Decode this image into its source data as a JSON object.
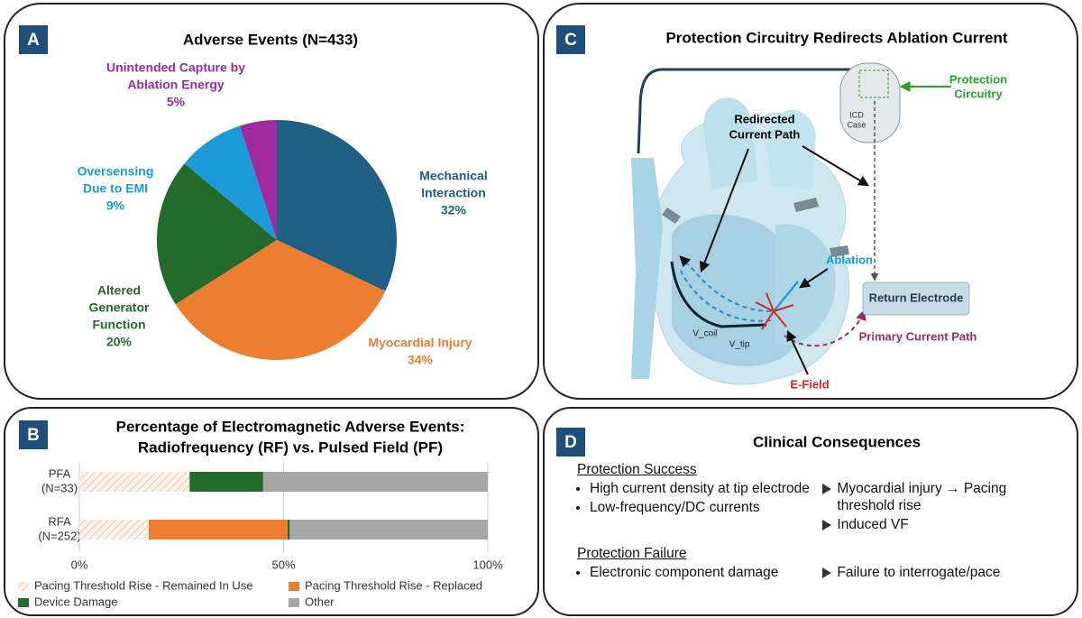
{
  "chart_data": [
    {
      "type": "pie",
      "panel": "A",
      "title": "Adverse Events (N=433)",
      "categories": [
        [
          "Mechanical",
          "Interaction"
        ],
        [
          "Myocardial Injury"
        ],
        [
          "Altered",
          "Generator",
          "Function"
        ],
        [
          "Oversensing",
          "Due to EMI"
        ],
        [
          "Unintended Capture by",
          "Ablation Energy"
        ]
      ],
      "values": [
        32,
        34,
        20,
        9,
        5
      ],
      "value_labels": [
        "32%",
        "34%",
        "20%",
        "9%",
        "5%"
      ],
      "colors": [
        "#1f5f82",
        "#ed7d31",
        "#236b2a",
        "#1a9ad6",
        "#9e2a9e"
      ]
    },
    {
      "type": "stacked_barh",
      "panel": "B",
      "title": [
        "Percentage of Electromagnetic Adverse Events:",
        "Radiofrequency (RF) vs. Pulsed Field (PF)"
      ],
      "categories": [
        [
          "PFA",
          "(N=33)"
        ],
        [
          "RFA",
          "(N=252)"
        ]
      ],
      "series": [
        {
          "name": "Pacing Threshold Rise - Remained In Use",
          "color": "#f6dccb",
          "hatch": true,
          "values": [
            27,
            17
          ]
        },
        {
          "name": "Pacing Threshold Rise - Replaced",
          "color": "#ed7d31",
          "values": [
            0,
            34
          ]
        },
        {
          "name": "Device Damage",
          "color": "#236b2a",
          "values": [
            18,
            0.5
          ]
        },
        {
          "name": "Other",
          "color": "#a6a6a6",
          "values": [
            55,
            48.5
          ]
        }
      ],
      "xlim": [
        0,
        100
      ],
      "xticks": [
        {
          "value": 0,
          "label": "0%"
        },
        {
          "value": 50,
          "label": "50%"
        },
        {
          "value": 100,
          "label": "100%"
        }
      ],
      "grid": true
    }
  ],
  "diagram": {
    "panel": "C",
    "title": "Protection Circuitry Redirects Ablation Current",
    "labels": {
      "protection": [
        "Protection",
        "Circuitry"
      ],
      "icd": [
        "ICD",
        "Case"
      ],
      "redirected": [
        "Redirected",
        "Current Path"
      ],
      "ablation": "Ablation",
      "return": "Return Electrode",
      "primary": "Primary Current Path",
      "vcoil": "V_coil",
      "vtip": "V_tip",
      "efield": "E-Field"
    }
  },
  "consequences": {
    "panel": "D",
    "title": "Clinical Consequences",
    "sections": [
      {
        "heading": "Protection Success",
        "left": [
          "High current density at tip electrode",
          "Low-frequency/DC currents"
        ],
        "right": [
          "Myocardial injury → Pacing threshold rise",
          "Induced VF"
        ]
      },
      {
        "heading": "Protection Failure",
        "left": [
          "Electronic component damage"
        ],
        "right": [
          "Failure to interrogate/pace"
        ]
      }
    ]
  }
}
